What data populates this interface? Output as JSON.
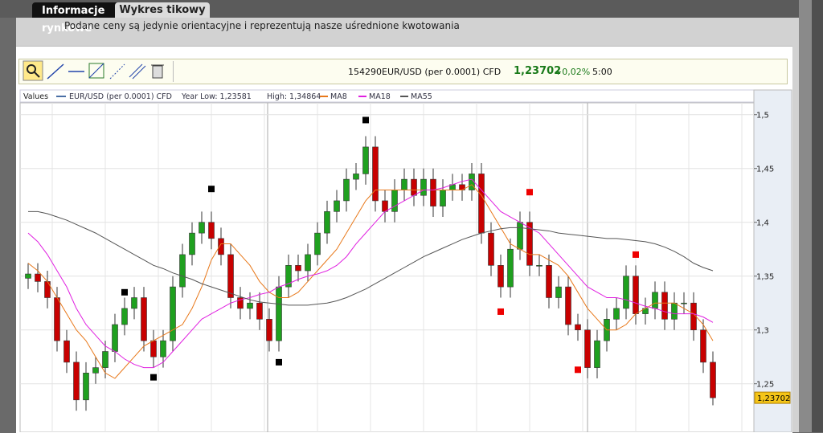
{
  "tabs": [
    "Informacje rynkowe",
    "Wykres tikowy"
  ],
  "note": "Podane ceny są jedynie orientacyjne i reprezentują nasze uśrednione kwotowania",
  "toolbar": {
    "id": "154290",
    "change": "+0,02%",
    "interval": "5:00"
  },
  "legend": {
    "label": "Values",
    "year_low": "Year Low: 1,23581",
    "year_high": "High: 1,34864"
  },
  "chart_data": {
    "type": "candlestick",
    "series": [
      {
        "name": "EUR/USD (per 0.0001) CFD",
        "color": "#4a6fa5",
        "up_color": "#1fa01f",
        "down_color": "#c80000",
        "open": [
          1.348,
          1.352,
          1.345,
          1.33,
          1.29,
          1.27,
          1.235,
          1.26,
          1.265,
          1.28,
          1.305,
          1.32,
          1.33,
          1.29,
          1.275,
          1.29,
          1.34,
          1.37,
          1.39,
          1.4,
          1.385,
          1.37,
          1.33,
          1.32,
          1.325,
          1.31,
          1.29,
          1.34,
          1.36,
          1.355,
          1.37,
          1.39,
          1.41,
          1.42,
          1.44,
          1.445,
          1.47,
          1.42,
          1.41,
          1.43,
          1.44,
          1.425,
          1.44,
          1.415,
          1.43,
          1.435,
          1.43,
          1.445,
          1.39,
          1.36,
          1.34,
          1.375,
          1.4,
          1.36,
          1.36,
          1.33,
          1.34,
          1.305,
          1.3,
          1.265,
          1.29,
          1.31,
          1.32,
          1.35,
          1.315,
          1.32,
          1.335,
          1.31,
          1.325,
          1.325,
          1.3,
          1.27
        ],
        "high": [
          1.362,
          1.362,
          1.355,
          1.34,
          1.3,
          1.28,
          1.27,
          1.275,
          1.29,
          1.315,
          1.33,
          1.34,
          1.34,
          1.3,
          1.3,
          1.35,
          1.38,
          1.4,
          1.41,
          1.41,
          1.395,
          1.38,
          1.34,
          1.335,
          1.335,
          1.32,
          1.35,
          1.37,
          1.37,
          1.38,
          1.4,
          1.42,
          1.43,
          1.45,
          1.455,
          1.48,
          1.48,
          1.43,
          1.44,
          1.45,
          1.45,
          1.45,
          1.45,
          1.44,
          1.445,
          1.445,
          1.455,
          1.455,
          1.4,
          1.37,
          1.385,
          1.41,
          1.41,
          1.37,
          1.37,
          1.35,
          1.35,
          1.315,
          1.31,
          1.3,
          1.32,
          1.33,
          1.36,
          1.36,
          1.33,
          1.345,
          1.345,
          1.335,
          1.335,
          1.335,
          1.31,
          1.28
        ],
        "low": [
          1.338,
          1.335,
          1.32,
          1.28,
          1.26,
          1.225,
          1.225,
          1.25,
          1.255,
          1.27,
          1.295,
          1.31,
          1.28,
          1.265,
          1.265,
          1.28,
          1.33,
          1.36,
          1.38,
          1.375,
          1.36,
          1.32,
          1.31,
          1.31,
          1.3,
          1.28,
          1.28,
          1.33,
          1.345,
          1.345,
          1.36,
          1.38,
          1.4,
          1.41,
          1.43,
          1.435,
          1.41,
          1.4,
          1.4,
          1.42,
          1.415,
          1.415,
          1.405,
          1.405,
          1.42,
          1.42,
          1.42,
          1.38,
          1.35,
          1.33,
          1.33,
          1.365,
          1.35,
          1.35,
          1.32,
          1.32,
          1.295,
          1.29,
          1.255,
          1.255,
          1.28,
          1.3,
          1.31,
          1.305,
          1.305,
          1.31,
          1.3,
          1.3,
          1.315,
          1.29,
          1.26,
          1.23
        ],
        "close": [
          1.352,
          1.345,
          1.33,
          1.29,
          1.27,
          1.235,
          1.26,
          1.265,
          1.28,
          1.305,
          1.32,
          1.33,
          1.29,
          1.275,
          1.29,
          1.34,
          1.37,
          1.39,
          1.4,
          1.385,
          1.37,
          1.33,
          1.32,
          1.325,
          1.31,
          1.29,
          1.34,
          1.36,
          1.355,
          1.37,
          1.39,
          1.41,
          1.42,
          1.44,
          1.445,
          1.47,
          1.42,
          1.41,
          1.43,
          1.44,
          1.425,
          1.44,
          1.415,
          1.43,
          1.435,
          1.43,
          1.445,
          1.39,
          1.36,
          1.34,
          1.375,
          1.4,
          1.36,
          1.36,
          1.33,
          1.34,
          1.305,
          1.3,
          1.265,
          1.29,
          1.31,
          1.32,
          1.35,
          1.315,
          1.32,
          1.335,
          1.31,
          1.325,
          1.325,
          1.3,
          1.27,
          1.237
        ]
      },
      {
        "name": "MA8",
        "color": "#e8781a",
        "values": [
          1.362,
          1.355,
          1.345,
          1.33,
          1.315,
          1.3,
          1.29,
          1.275,
          1.26,
          1.255,
          1.265,
          1.275,
          1.285,
          1.29,
          1.295,
          1.3,
          1.305,
          1.32,
          1.34,
          1.365,
          1.38,
          1.38,
          1.37,
          1.36,
          1.345,
          1.335,
          1.33,
          1.33,
          1.335,
          1.345,
          1.355,
          1.365,
          1.375,
          1.39,
          1.405,
          1.42,
          1.43,
          1.43,
          1.43,
          1.43,
          1.43,
          1.43,
          1.43,
          1.43,
          1.43,
          1.43,
          1.435,
          1.425,
          1.41,
          1.395,
          1.38,
          1.375,
          1.37,
          1.37,
          1.365,
          1.36,
          1.35,
          1.335,
          1.32,
          1.31,
          1.3,
          1.3,
          1.305,
          1.315,
          1.32,
          1.325,
          1.325,
          1.325,
          1.32,
          1.315,
          1.305,
          1.29
        ]
      },
      {
        "name": "MA18",
        "color": "#e020e0",
        "values": [
          1.39,
          1.382,
          1.37,
          1.355,
          1.34,
          1.32,
          1.305,
          1.295,
          1.285,
          1.28,
          1.273,
          1.268,
          1.265,
          1.265,
          1.27,
          1.28,
          1.29,
          1.3,
          1.31,
          1.315,
          1.32,
          1.325,
          1.328,
          1.33,
          1.333,
          1.335,
          1.34,
          1.343,
          1.347,
          1.35,
          1.352,
          1.355,
          1.36,
          1.368,
          1.38,
          1.39,
          1.4,
          1.41,
          1.415,
          1.42,
          1.425,
          1.43,
          1.43,
          1.432,
          1.435,
          1.438,
          1.44,
          1.43,
          1.42,
          1.41,
          1.405,
          1.4,
          1.395,
          1.39,
          1.38,
          1.37,
          1.36,
          1.35,
          1.34,
          1.335,
          1.33,
          1.33,
          1.328,
          1.325,
          1.322,
          1.32,
          1.317,
          1.315,
          1.315,
          1.315,
          1.312,
          1.307
        ]
      },
      {
        "name": "MA55",
        "color": "#555555",
        "values": [
          1.41,
          1.41,
          1.408,
          1.405,
          1.402,
          1.398,
          1.394,
          1.39,
          1.385,
          1.38,
          1.375,
          1.37,
          1.365,
          1.36,
          1.357,
          1.353,
          1.35,
          1.347,
          1.343,
          1.34,
          1.337,
          1.334,
          1.331,
          1.328,
          1.326,
          1.325,
          1.324,
          1.323,
          1.323,
          1.323,
          1.324,
          1.325,
          1.327,
          1.33,
          1.334,
          1.338,
          1.343,
          1.348,
          1.353,
          1.358,
          1.363,
          1.368,
          1.372,
          1.376,
          1.38,
          1.384,
          1.387,
          1.39,
          1.392,
          1.394,
          1.395,
          1.395,
          1.394,
          1.393,
          1.392,
          1.39,
          1.389,
          1.388,
          1.387,
          1.386,
          1.385,
          1.385,
          1.384,
          1.383,
          1.382,
          1.38,
          1.377,
          1.373,
          1.368,
          1.362,
          1.358,
          1.355
        ]
      }
    ],
    "markers": [
      {
        "color": "#000000",
        "values": [
          null,
          null,
          null,
          null,
          null,
          null,
          null,
          null,
          null,
          null,
          1.335,
          null,
          null,
          1.256,
          null,
          null,
          null,
          null,
          null,
          1.431,
          null,
          null,
          null,
          null,
          null,
          null,
          1.27,
          null,
          null,
          null,
          null,
          null,
          null,
          null,
          null,
          1.495,
          null,
          null,
          null,
          null,
          null,
          null,
          null,
          null,
          null,
          null,
          null,
          null,
          null,
          null,
          null,
          null,
          null,
          null,
          null,
          null,
          null,
          null,
          null,
          null,
          null,
          null,
          null,
          null,
          null,
          null,
          null,
          null,
          null,
          null,
          null,
          null
        ]
      },
      {
        "color": "#ee0000",
        "values": [
          null,
          null,
          null,
          null,
          null,
          null,
          null,
          null,
          null,
          null,
          null,
          null,
          null,
          null,
          null,
          null,
          null,
          null,
          null,
          null,
          null,
          null,
          null,
          null,
          null,
          null,
          null,
          null,
          null,
          null,
          null,
          null,
          null,
          null,
          null,
          null,
          null,
          null,
          null,
          null,
          null,
          null,
          null,
          null,
          null,
          null,
          null,
          null,
          null,
          1.317,
          null,
          null,
          1.428,
          null,
          null,
          null,
          null,
          1.263,
          null,
          null,
          null,
          null,
          null,
          1.37,
          null,
          null,
          null,
          null,
          null,
          null,
          null,
          null
        ]
      }
    ],
    "last_price": {
      "value": 1.23702,
      "label": "1,23702"
    },
    "last_price_color": "#f5c518",
    "ylim": [
      1.205,
      1.511
    ],
    "yticks": [
      {
        "value": 1.25,
        "label": "1,25"
      },
      {
        "value": 1.3,
        "label": "1,3"
      },
      {
        "value": 1.35,
        "label": "1,35"
      },
      {
        "value": 1.4,
        "label": "1,4"
      },
      {
        "value": 1.45,
        "label": "1,45"
      },
      {
        "value": 1.5,
        "label": "1,5"
      }
    ],
    "grid": true
  }
}
